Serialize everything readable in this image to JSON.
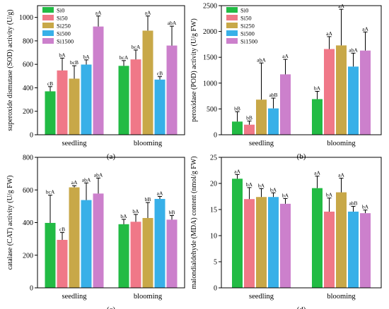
{
  "chart_data": [
    {
      "type": "bar",
      "panel_label": "(a)",
      "ylabel": "superoxide dismutase (SOD) activity (U/g)",
      "ylim": [
        0,
        1100
      ],
      "yticks": [
        0,
        200,
        400,
        600,
        800,
        1000
      ],
      "categories": [
        "seedling",
        "blooming"
      ],
      "legend": "top-left",
      "series": [
        {
          "name": "Si0",
          "color": "#22bb44",
          "values": [
            370,
            587
          ],
          "errors": [
            40,
            45
          ],
          "labels": [
            "cB",
            "bcA"
          ]
        },
        {
          "name": "Si50",
          "color": "#f07888",
          "values": [
            548,
            642
          ],
          "errors": [
            105,
            80
          ],
          "labels": [
            "bA",
            "bcA"
          ]
        },
        {
          "name": "Si250",
          "color": "#c8a848",
          "values": [
            478,
            887
          ],
          "errors": [
            110,
            125
          ],
          "labels": [
            "bcB",
            "aA"
          ]
        },
        {
          "name": "Si500",
          "color": "#38b0e8",
          "values": [
            598,
            470
          ],
          "errors": [
            40,
            25
          ],
          "labels": [
            "bA",
            "cB"
          ]
        },
        {
          "name": "Si1500",
          "color": "#cc80cc",
          "values": [
            922,
            760
          ],
          "errors": [
            90,
            165
          ],
          "labels": [
            "aA",
            "abA"
          ]
        }
      ]
    },
    {
      "type": "bar",
      "panel_label": "(b)",
      "ylabel": "peroxidase (POD) activity (U/g FW)",
      "ylim": [
        0,
        2500
      ],
      "yticks": [
        0,
        500,
        1000,
        1500,
        2000,
        2500
      ],
      "categories": [
        "seedling",
        "blooming"
      ],
      "legend": "top-left",
      "series": [
        {
          "name": "Si0",
          "color": "#22bb44",
          "values": [
            255,
            690
          ],
          "errors": [
            190,
            150
          ],
          "labels": [
            "bB",
            "bA"
          ]
        },
        {
          "name": "Si50",
          "color": "#f07888",
          "values": [
            195,
            1660
          ],
          "errors": [
            70,
            240
          ],
          "labels": [
            "bB",
            "aA"
          ]
        },
        {
          "name": "Si250",
          "color": "#c8a848",
          "values": [
            680,
            1730
          ],
          "errors": [
            710,
            700
          ],
          "labels": [
            "abA",
            "aA"
          ]
        },
        {
          "name": "Si500",
          "color": "#38b0e8",
          "values": [
            510,
            1320
          ],
          "errors": [
            200,
            260
          ],
          "labels": [
            "abB",
            "abA"
          ]
        },
        {
          "name": "Si1500",
          "color": "#cc80cc",
          "values": [
            1170,
            1630
          ],
          "errors": [
            290,
            360
          ],
          "labels": [
            "aA",
            "aA"
          ]
        }
      ]
    },
    {
      "type": "bar",
      "panel_label": "(c)",
      "ylabel": "catalase (CAT) activity (U/g FW)",
      "ylim": [
        0,
        800
      ],
      "yticks": [
        0,
        200,
        400,
        600,
        800
      ],
      "categories": [
        "seedling",
        "blooming"
      ],
      "series": [
        {
          "name": "Si0",
          "color": "#22bb44",
          "values": [
            398,
            390
          ],
          "errors": [
            170,
            30
          ],
          "labels": [
            "bcA",
            "bA"
          ]
        },
        {
          "name": "Si50",
          "color": "#f07888",
          "values": [
            294,
            405
          ],
          "errors": [
            45,
            45
          ],
          "labels": [
            "cB",
            "bA"
          ]
        },
        {
          "name": "Si250",
          "color": "#c8a848",
          "values": [
            616,
            428
          ],
          "errors": [
            10,
            95
          ],
          "labels": [
            "aA",
            "bB"
          ]
        },
        {
          "name": "Si500",
          "color": "#38b0e8",
          "values": [
            538,
            545
          ],
          "errors": [
            105,
            15
          ],
          "labels": [
            "abA",
            "aA"
          ]
        },
        {
          "name": "Si1500",
          "color": "#cc80cc",
          "values": [
            578,
            418
          ],
          "errors": [
            95,
            25
          ],
          "labels": [
            "abA",
            "bB"
          ]
        }
      ]
    },
    {
      "type": "bar",
      "panel_label": "(d)",
      "ylabel": "malondialdehyde (MDA) content (nmol/g FW)",
      "ylim": [
        0,
        25
      ],
      "yticks": [
        0,
        5,
        10,
        15,
        20,
        25
      ],
      "categories": [
        "seedling",
        "blooming"
      ],
      "series": [
        {
          "name": "Si0",
          "color": "#22bb44",
          "values": [
            20.9,
            19.1
          ],
          "errors": [
            0.8,
            2.3
          ],
          "labels": [
            "aA",
            "aA"
          ]
        },
        {
          "name": "Si50",
          "color": "#f07888",
          "values": [
            17.0,
            14.6
          ],
          "errors": [
            2.2,
            2.6
          ],
          "labels": [
            "bA",
            "bA"
          ]
        },
        {
          "name": "Si250",
          "color": "#c8a848",
          "values": [
            17.4,
            18.3
          ],
          "errors": [
            1.6,
            2.7
          ],
          "labels": [
            "bA",
            "aA"
          ]
        },
        {
          "name": "Si500",
          "color": "#38b0e8",
          "values": [
            17.4,
            14.6
          ],
          "errors": [
            0.8,
            1.0
          ],
          "labels": [
            "bA",
            "abB"
          ]
        },
        {
          "name": "Si1500",
          "color": "#cc80cc",
          "values": [
            16.1,
            14.3
          ],
          "errors": [
            1.0,
            0.6
          ],
          "labels": [
            "bA",
            "bA"
          ]
        }
      ]
    }
  ]
}
